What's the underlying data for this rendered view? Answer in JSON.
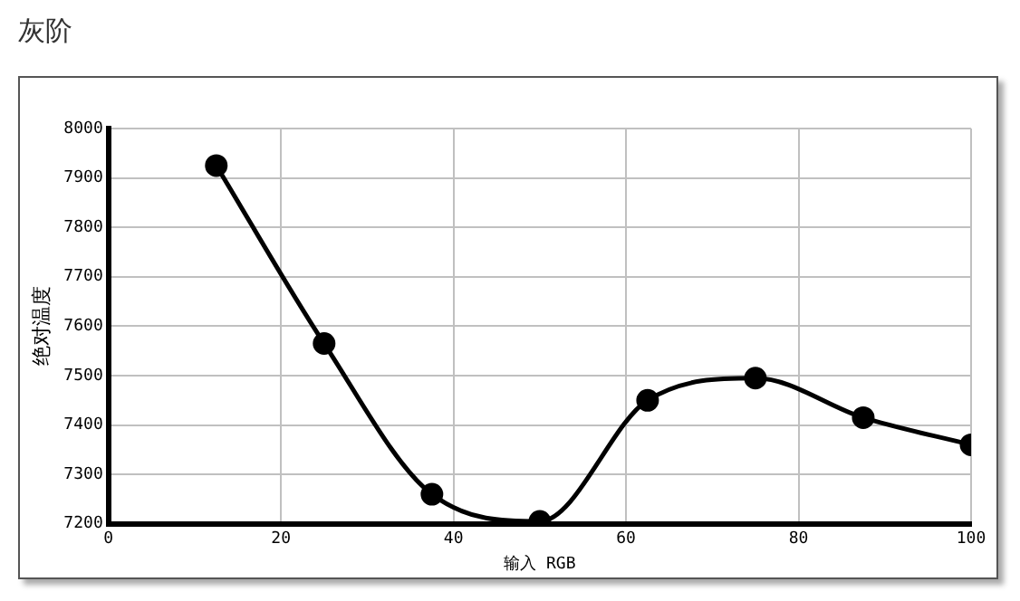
{
  "chart_data": {
    "type": "line",
    "title": "灰阶",
    "xlabel": "输入 RGB",
    "ylabel": "绝对温度",
    "x": [
      12.5,
      25,
      37.5,
      50,
      62.5,
      75,
      87.5,
      100
    ],
    "series": [
      {
        "color": "#000000",
        "values": [
          7925,
          7565,
          7260,
          7205,
          7450,
          7495,
          7415,
          7360
        ]
      }
    ],
    "xlim": [
      0,
      100
    ],
    "xticks": [
      0,
      20,
      40,
      60,
      80,
      100
    ],
    "ylim": [
      7200,
      8000
    ],
    "yticks": [
      7200,
      7300,
      7400,
      7500,
      7600,
      7700,
      7800,
      7900,
      8000
    ],
    "grid": true,
    "legend": false,
    "marker": "circle",
    "line_style": "solid"
  }
}
